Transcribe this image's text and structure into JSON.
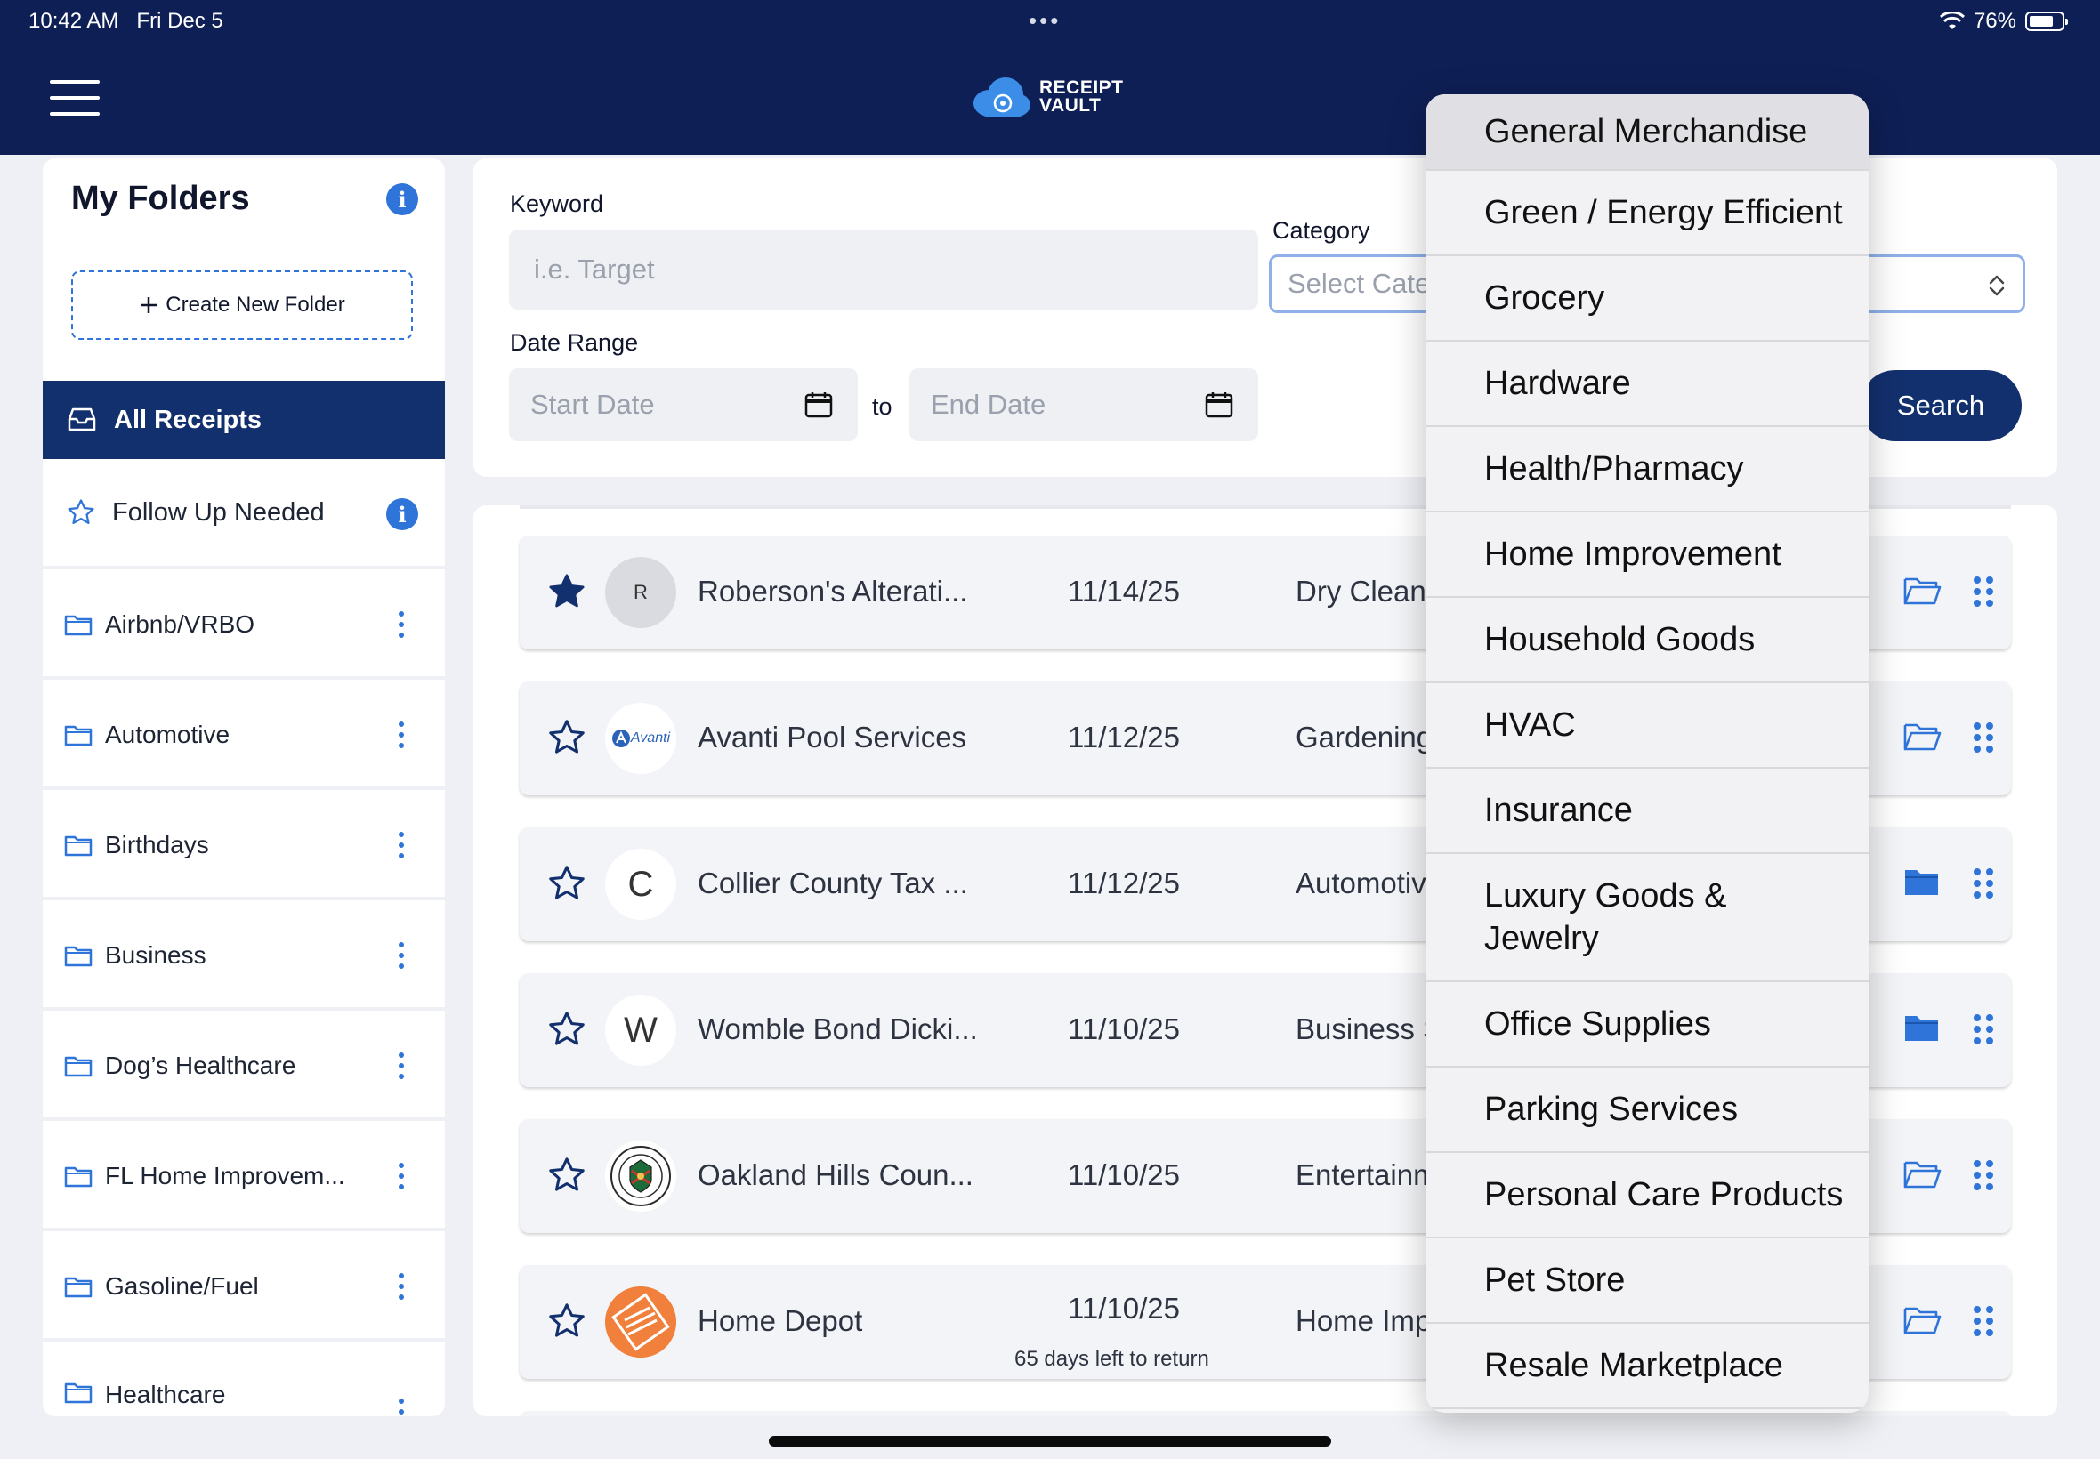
{
  "status_bar": {
    "time": "10:42 AM",
    "date": "Fri Dec 5",
    "battery": "76%"
  },
  "header": {
    "logo_line1": "RECEIPT",
    "logo_line2": "VAULT"
  },
  "sidebar": {
    "title": "My Folders",
    "create_label": "Create New Folder",
    "all_receipts": "All Receipts",
    "follow_up": "Follow Up Needed",
    "folders": [
      "Airbnb/VRBO",
      "Automotive",
      "Birthdays",
      "Business",
      "Dog’s Healthcare",
      "FL Home Improvem...",
      "Gasoline/Fuel",
      "Healthcare"
    ]
  },
  "search": {
    "keyword_label": "Keyword",
    "keyword_placeholder": "i.e. Target",
    "category_label": "Category",
    "category_placeholder": "Select Cate",
    "date_range_label": "Date Range",
    "start_placeholder": "Start Date",
    "to_label": "to",
    "end_placeholder": "End Date",
    "search_button": "Search"
  },
  "receipts": [
    {
      "avatar": "R",
      "merchant": "Roberson's Alterati...",
      "date": "11/14/25",
      "category": "Dry Clean",
      "starred": true,
      "folder_filled": false
    },
    {
      "avatar": "Avanti",
      "merchant": "Avanti Pool Services",
      "date": "11/12/25",
      "category": "Gardening",
      "starred": false,
      "folder_filled": false
    },
    {
      "avatar": "C",
      "merchant": "Collier County Tax ...",
      "date": "11/12/25",
      "category": "Automotiv",
      "starred": false,
      "folder_filled": true
    },
    {
      "avatar": "W",
      "merchant": "Womble Bond Dicki...",
      "date": "11/10/25",
      "category": "Business S",
      "starred": false,
      "folder_filled": true
    },
    {
      "avatar": "",
      "merchant": "Oakland Hills Coun...",
      "date": "11/10/25",
      "category": "Entertainm",
      "starred": false,
      "folder_filled": false
    },
    {
      "avatar": "",
      "merchant": "Home Depot",
      "date": "11/10/25",
      "subtext": "65 days left to return",
      "category": "Home Imp",
      "starred": false,
      "folder_filled": false
    }
  ],
  "category_options": [
    "General Merchandise",
    "Green / Energy Efficient",
    "Grocery",
    "Hardware",
    "Health/Pharmacy",
    "Home Improvement",
    "Household Goods",
    "HVAC",
    "Insurance",
    "Luxury Goods & Jewelry",
    "Office Supplies",
    "Parking Services",
    "Personal Care Products",
    "Pet Store",
    "Resale Marketplace"
  ],
  "colors": {
    "navy": "#0e1f55",
    "selected": "#13306e",
    "accent": "#2f74d8"
  }
}
